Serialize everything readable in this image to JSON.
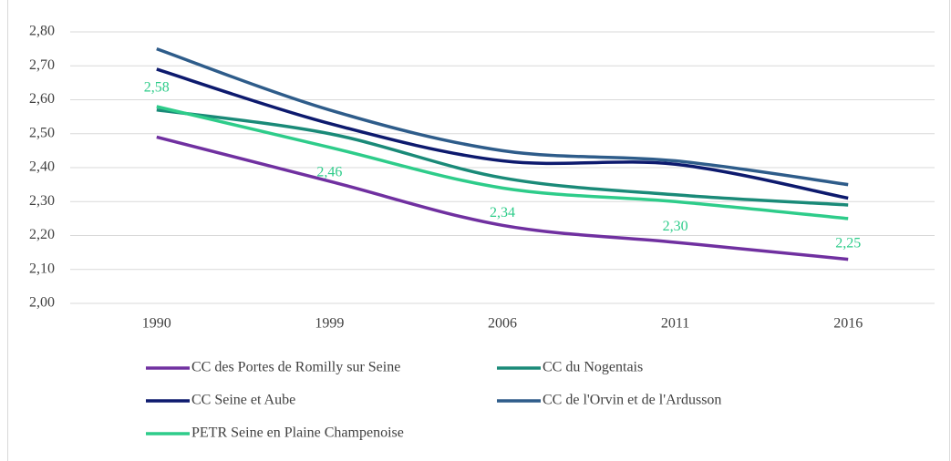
{
  "chart_data": {
    "type": "line",
    "categories": [
      "1990",
      "1999",
      "2006",
      "2011",
      "2016"
    ],
    "series": [
      {
        "name": "CC des Portes de Romilly sur Seine",
        "color": "#7030a0",
        "values": [
          2.49,
          2.36,
          2.23,
          2.18,
          2.13
        ]
      },
      {
        "name": "CC du Nogentais",
        "color": "#1a8a78",
        "values": [
          2.57,
          2.5,
          2.37,
          2.32,
          2.29
        ]
      },
      {
        "name": "CC Seine et Aube",
        "color": "#0d1a6e",
        "values": [
          2.69,
          2.53,
          2.42,
          2.41,
          2.31
        ]
      },
      {
        "name": "CC de l'Orvin et de l'Ardusson",
        "color": "#2e5c8a",
        "values": [
          2.75,
          2.57,
          2.45,
          2.42,
          2.35
        ]
      },
      {
        "name": "PETR Seine en Plaine Champenoise",
        "color": "#2ecc8a",
        "values": [
          2.58,
          2.46,
          2.34,
          2.3,
          2.25
        ],
        "value_labels": [
          "2,58",
          "2,46",
          "2,34",
          "2,30",
          "2,25"
        ]
      }
    ],
    "ylim": [
      2.0,
      2.8
    ],
    "yticks": [
      {
        "value": 2.0,
        "label": "2,00"
      },
      {
        "value": 2.1,
        "label": "2,10"
      },
      {
        "value": 2.2,
        "label": "2,20"
      },
      {
        "value": 2.3,
        "label": "2,30"
      },
      {
        "value": 2.4,
        "label": "2,40"
      },
      {
        "value": 2.5,
        "label": "2,50"
      },
      {
        "value": 2.6,
        "label": "2,60"
      },
      {
        "value": 2.7,
        "label": "2,70"
      },
      {
        "value": 2.8,
        "label": "2,80"
      }
    ],
    "grid": true,
    "legend": "bottom"
  }
}
